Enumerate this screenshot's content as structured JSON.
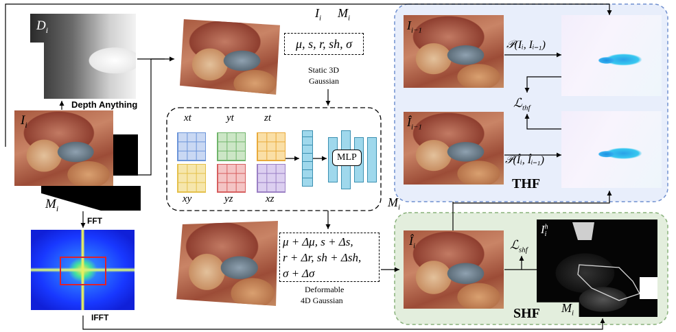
{
  "top_labels": {
    "image": "I",
    "image_sub": "i",
    "mask": "M",
    "mask_sub": "i"
  },
  "left": {
    "depth_label": "D",
    "depth_sub": "i",
    "depth_anything": "Depth Anything",
    "image_label": "I",
    "image_sub": "i",
    "mask_label": "M",
    "mask_sub": "i",
    "fft": "FFT",
    "ifft": "IFFT"
  },
  "static": {
    "params": "μ, s, r, sh, σ",
    "caption_line1": "Static 3D",
    "caption_line2": "Gaussian"
  },
  "hexplane": {
    "planes": [
      {
        "label": "xt",
        "color": "#6a93d8",
        "fill": "#c9d8f3"
      },
      {
        "label": "yt",
        "color": "#6fb46a",
        "fill": "#cce6c6"
      },
      {
        "label": "zt",
        "color": "#e8a93a",
        "fill": "#fadfa6"
      },
      {
        "label": "xy",
        "color": "#e4c04a",
        "fill": "#f6e6ac"
      },
      {
        "label": "yz",
        "color": "#d65e5e",
        "fill": "#f4c4c4"
      },
      {
        "label": "xz",
        "color": "#9a7fc4",
        "fill": "#dccff0"
      }
    ],
    "mlp": "MLP"
  },
  "deform": {
    "line1": "μ + Δμ, s + Δs,",
    "line2": "r + Δr, sh + Δsh,",
    "line3": "σ + Δσ",
    "caption_line1": "Deformable",
    "caption_line2": "4D Gaussian"
  },
  "thf": {
    "prev_label": "I",
    "prev_sub": "i−1",
    "prev_hat_label": "Î",
    "prev_hat_sub": "i−1",
    "flow_label": "𝒫(I",
    "flow_full": "𝒫(Iᵢ, Iᵢ₋₁)",
    "flow_hat_full": "𝒫(Îᵢ, Îᵢ₋₁)",
    "loss": "ℒ",
    "loss_sub": "thf",
    "title": "THF",
    "colors": {
      "bg": "#e8eefb",
      "border": "#6f8fcf"
    }
  },
  "shf": {
    "render_label": "Î",
    "render_sub": "i",
    "loss": "ℒ",
    "loss_sub": "shf",
    "sem_label": "I",
    "sem_sub": "i",
    "sem_sup": "h",
    "mask_label": "M",
    "mask_sub": "i",
    "title": "SHF",
    "colors": {
      "bg": "#e3eedd",
      "border": "#88b07a"
    }
  },
  "between_label": {
    "mask": "M",
    "mask_sub": "i"
  }
}
